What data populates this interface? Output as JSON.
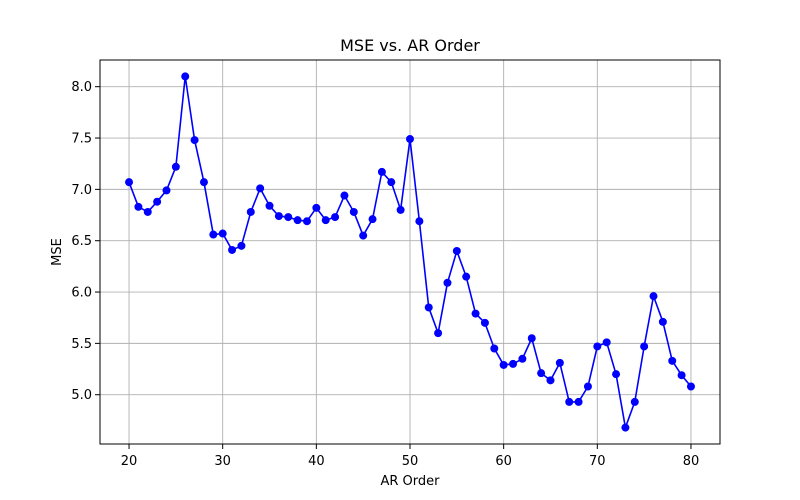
{
  "chart_data": {
    "type": "line",
    "title": "MSE vs. AR Order",
    "xlabel": "AR Order",
    "ylabel": "MSE",
    "xlim": [
      16.9,
      83.1
    ],
    "ylim": [
      4.52,
      8.26
    ],
    "x_ticks": [
      20,
      30,
      40,
      50,
      60,
      70,
      80
    ],
    "y_ticks": [
      5.0,
      5.5,
      6.0,
      6.5,
      7.0,
      7.5,
      8.0
    ],
    "x_tick_labels": [
      "20",
      "30",
      "40",
      "50",
      "60",
      "70",
      "80"
    ],
    "y_tick_labels": [
      "5.0",
      "5.5",
      "6.0",
      "6.5",
      "7.0",
      "7.5",
      "8.0"
    ],
    "grid": true,
    "marker": "circle",
    "color": "#0000ff",
    "series": [
      {
        "x": [
          20,
          21,
          22,
          23,
          24,
          25,
          26,
          27,
          28,
          29,
          30,
          31,
          32,
          33,
          34,
          35,
          36,
          37,
          38,
          39,
          40,
          41,
          42,
          43,
          44,
          45,
          46,
          47,
          48,
          49,
          50,
          51,
          52,
          53,
          54,
          55,
          56,
          57,
          58,
          59,
          60,
          61,
          62,
          63,
          64,
          65,
          66,
          67,
          68,
          69,
          70,
          71,
          72,
          73,
          74,
          75,
          76,
          77,
          78,
          79,
          80
        ],
        "values": [
          7.07,
          6.83,
          6.78,
          6.88,
          6.99,
          7.22,
          8.1,
          7.48,
          7.07,
          6.56,
          6.57,
          6.41,
          6.45,
          6.78,
          7.01,
          6.84,
          6.74,
          6.73,
          6.7,
          6.69,
          6.82,
          6.7,
          6.73,
          6.94,
          6.78,
          6.55,
          6.71,
          7.17,
          7.07,
          6.8,
          7.49,
          6.69,
          5.85,
          5.6,
          6.09,
          6.4,
          6.15,
          5.79,
          5.7,
          5.45,
          5.29,
          5.3,
          5.35,
          5.55,
          5.21,
          5.14,
          5.31,
          4.93,
          4.93,
          5.08,
          5.47,
          5.51,
          5.2,
          4.68,
          4.93,
          5.47,
          5.96,
          5.71,
          5.33,
          5.19,
          5.08
        ]
      }
    ]
  }
}
